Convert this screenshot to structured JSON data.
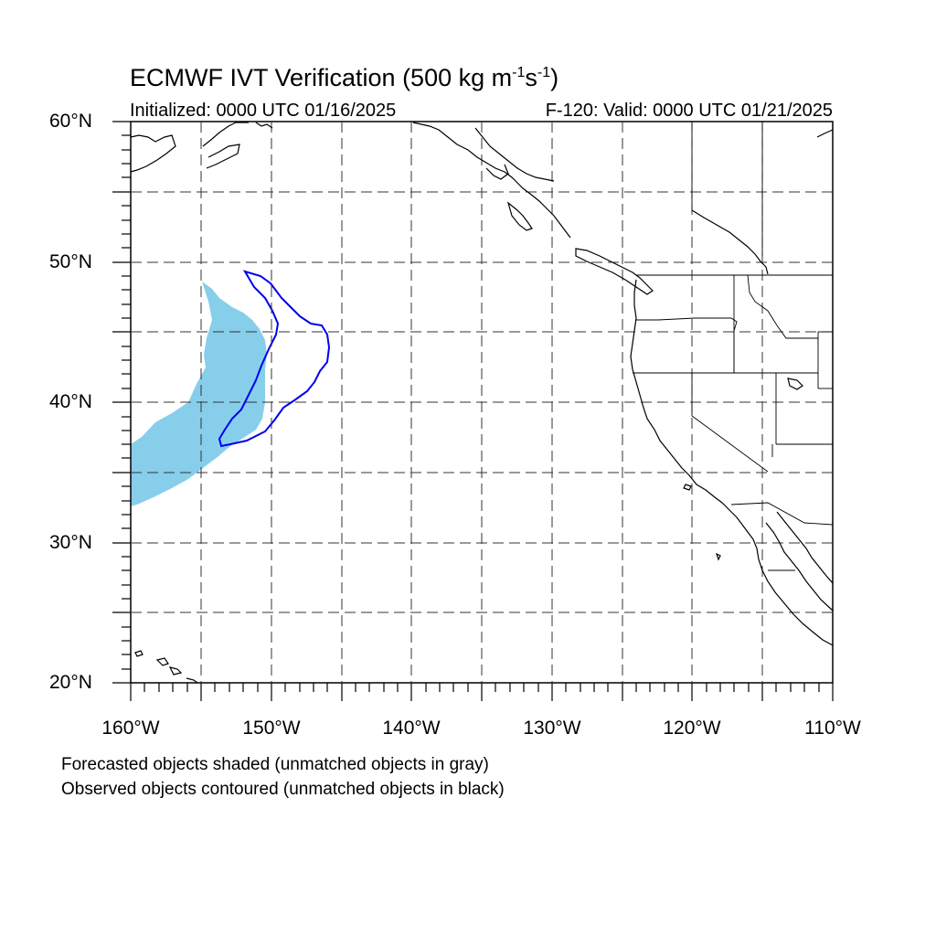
{
  "header": {
    "title_main": "ECMWF IVT Verification (500 kg m",
    "title_sup1": "-1",
    "title_mid": "s",
    "title_sup2": "-1",
    "title_end": ")",
    "initialized": "Initialized: 0000 UTC 01/16/2025",
    "valid": "F-120: Valid: 0000 UTC 01/21/2025"
  },
  "axes": {
    "lat_labels": [
      "60°N",
      "50°N",
      "40°N",
      "30°N",
      "20°N"
    ],
    "lon_labels": [
      "160°W",
      "150°W",
      "140°W",
      "130°W",
      "120°W",
      "110°W"
    ]
  },
  "notes": {
    "forecast": "Forecasted objects shaded (unmatched objects in gray)",
    "observed": "Observed objects contoured (unmatched objects in black)"
  },
  "colors": {
    "forecast_fill": "#87ceeb",
    "observed_contour": "#0000ee",
    "coastline": "#000000",
    "grid": "#000000"
  },
  "map_extent": {
    "lon_min": -160,
    "lon_max": -110,
    "lat_min": 20,
    "lat_max": 60
  }
}
